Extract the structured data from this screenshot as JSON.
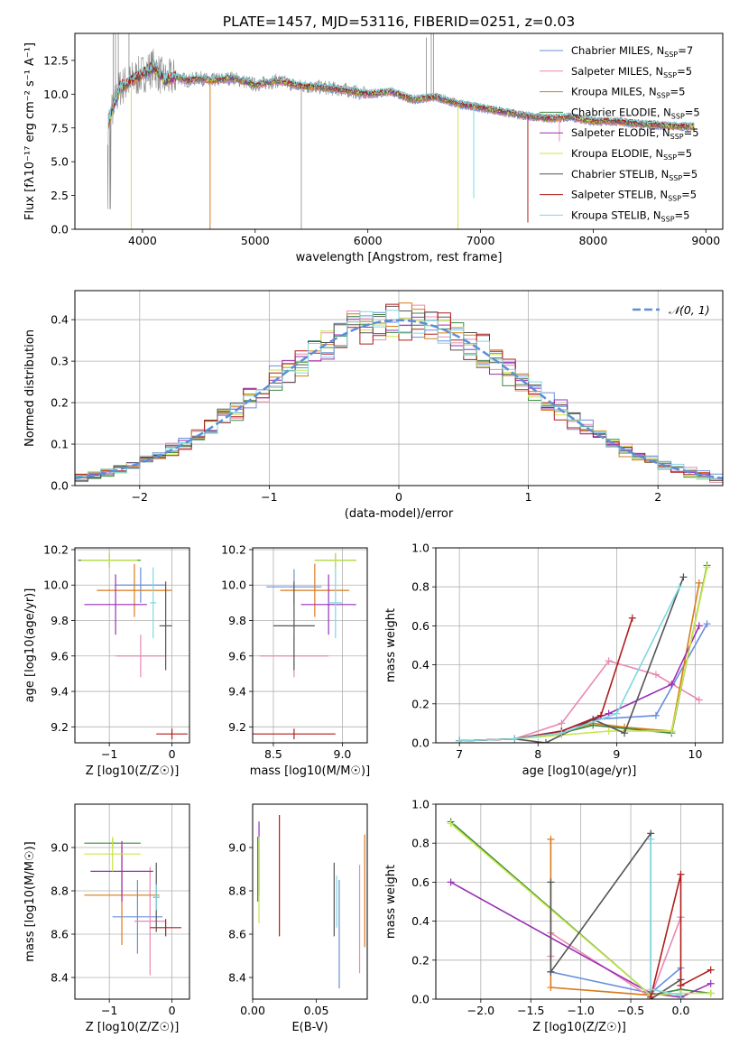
{
  "figure_title": "PLATE=1457, MJD=53116, FIBERID=0251, z=0.03",
  "colors": [
    "#6a8fdc",
    "#e88ab4",
    "#d97a1c",
    "#3d8a3d",
    "#9a2fb5",
    "#c8e64a",
    "#555555",
    "#b01c1c",
    "#7ed8e0"
  ],
  "chart_data": [
    {
      "id": "spectrum",
      "type": "line",
      "xlabel": "wavelength [Angstrom, rest frame]",
      "ylabel": "Flux [fλ10⁻¹⁷ erg cm⁻² s⁻¹ A⁻¹]",
      "xlim": [
        3400,
        9150
      ],
      "ylim": [
        0,
        14.5
      ],
      "xticks": [
        4000,
        5000,
        6000,
        7000,
        8000,
        9000
      ],
      "yticks": [
        0.0,
        2.5,
        5.0,
        7.5,
        10.0,
        12.5
      ],
      "legend_position": "top-right",
      "legend": [
        "Chabrier MILES, N_SSP=7",
        "Salpeter MILES, N_SSP=5",
        "Kroupa MILES, N_SSP=5",
        "Chabrier ELODIE, N_SSP=5",
        "Salpeter ELODIE, N_SSP=5",
        "Kroupa ELODIE, N_SSP=5",
        "Chabrier STELIB, N_SSP=5",
        "Salpeter STELIB, N_SSP=5",
        "Kroupa STELIB, N_SSP=5"
      ],
      "data_series": {
        "x": [
          3700,
          3800,
          3900,
          4000,
          4100,
          4200,
          4300,
          4400,
          4500,
          4600,
          4800,
          5000,
          5200,
          5400,
          5600,
          5800,
          6000,
          6200,
          6400,
          6600,
          6800,
          7000,
          7200,
          7400,
          7600,
          7800,
          8000,
          8200,
          8400,
          8600,
          8800
        ],
        "y": [
          8.0,
          10.5,
          11.0,
          11.5,
          12.0,
          11.0,
          11.3,
          11.0,
          11.2,
          11.0,
          11.2,
          10.7,
          11.0,
          10.6,
          10.5,
          10.3,
          10.0,
          10.2,
          9.6,
          9.8,
          9.3,
          9.0,
          8.7,
          8.4,
          8.2,
          8.3,
          8.0,
          8.0,
          7.8,
          7.7,
          7.6
        ]
      },
      "grid": false
    },
    {
      "id": "residuals",
      "type": "line",
      "xlabel": "(data-model)/error",
      "ylabel": "Normed distribution",
      "xlim": [
        -2.5,
        2.5
      ],
      "ylim": [
        0,
        0.47
      ],
      "xticks": [
        -2,
        -1,
        0,
        1,
        2
      ],
      "yticks": [
        0.0,
        0.1,
        0.2,
        0.3,
        0.4
      ],
      "legend": [
        "N(0,1)"
      ],
      "legend_position": "top-right",
      "curve": "normal_pdf",
      "grid": true
    },
    {
      "id": "age_vs_Z",
      "type": "scatter",
      "xlabel": "Z [log10(Z/Z☉)]",
      "ylabel": "age  [log10(age/yr)]",
      "xlim": [
        -1.55,
        0.28
      ],
      "ylim": [
        9.11,
        10.21
      ],
      "xticks": [
        -1,
        0
      ],
      "yticks": [
        9.2,
        9.4,
        9.6,
        9.8,
        10.0,
        10.2
      ],
      "grid": true,
      "points": [
        {
          "x": -0.5,
          "y": 10.0,
          "xerr": 0.4,
          "yerr": 0.1
        },
        {
          "x": -0.5,
          "y": 9.6,
          "xerr": 0.4,
          "yerr": 0.12
        },
        {
          "x": -0.6,
          "y": 9.97,
          "xerr": 0.6,
          "yerr": 0.15
        },
        {
          "x": -1.0,
          "y": 10.14,
          "xerr": 0.5,
          "yerr": 0.04
        },
        {
          "x": -0.9,
          "y": 9.89,
          "xerr": 0.5,
          "yerr": 0.17
        },
        {
          "x": -1.0,
          "y": 10.14,
          "xerr": 0.45,
          "yerr": 0.04
        },
        {
          "x": -0.1,
          "y": 9.77,
          "xerr": 0.1,
          "yerr": 0.25
        },
        {
          "x": 0.0,
          "y": 9.16,
          "xerr": 0.25,
          "yerr": 0.03
        },
        {
          "x": -0.3,
          "y": 9.9,
          "xerr": 0.05,
          "yerr": 0.2
        }
      ]
    },
    {
      "id": "age_vs_mass",
      "type": "scatter",
      "xlabel": "mass [log10(M/M☉)]",
      "ylabel": "",
      "xlim": [
        8.35,
        9.18
      ],
      "ylim": [
        9.11,
        10.21
      ],
      "xticks": [
        8.5,
        9.0
      ],
      "yticks": [
        9.2,
        9.4,
        9.6,
        9.8,
        10.0,
        10.2
      ],
      "grid": true,
      "points": [
        {
          "x": 8.65,
          "y": 9.99,
          "xerr": 0.2,
          "yerr": 0.1
        },
        {
          "x": 8.65,
          "y": 9.6,
          "xerr": 0.25,
          "yerr": 0.12
        },
        {
          "x": 8.8,
          "y": 9.97,
          "xerr": 0.25,
          "yerr": 0.15
        },
        {
          "x": 8.95,
          "y": 10.14,
          "xerr": 0.15,
          "yerr": 0.04
        },
        {
          "x": 8.9,
          "y": 9.89,
          "xerr": 0.2,
          "yerr": 0.17
        },
        {
          "x": 8.95,
          "y": 10.14,
          "xerr": 0.15,
          "yerr": 0.04
        },
        {
          "x": 8.65,
          "y": 9.77,
          "xerr": 0.15,
          "yerr": 0.25
        },
        {
          "x": 8.65,
          "y": 9.16,
          "xerr": 0.3,
          "yerr": 0.03
        },
        {
          "x": 8.95,
          "y": 9.9,
          "xerr": 0.05,
          "yerr": 0.2
        }
      ]
    },
    {
      "id": "massweight_vs_age",
      "type": "line",
      "xlabel": "age  [log10(age/yr)]",
      "ylabel": "mass weight",
      "xlim": [
        6.7,
        10.35
      ],
      "ylim": [
        0,
        1.0
      ],
      "xticks": [
        7,
        8,
        9,
        10
      ],
      "yticks": [
        0.0,
        0.2,
        0.4,
        0.6,
        0.8,
        1.0
      ],
      "grid": true,
      "series": [
        {
          "x": [
            7.0,
            7.7,
            8.3,
            8.7,
            9.5,
            10.15
          ],
          "y": [
            0.01,
            0.02,
            0.06,
            0.12,
            0.14,
            0.61
          ]
        },
        {
          "x": [
            7.0,
            7.7,
            8.3,
            8.9,
            9.5,
            10.05
          ],
          "y": [
            0.01,
            0.02,
            0.1,
            0.42,
            0.35,
            0.22
          ]
        },
        {
          "x": [
            7.0,
            7.7,
            8.3,
            8.7,
            9.1,
            9.7,
            10.05
          ],
          "y": [
            0.01,
            0.02,
            0.05,
            0.1,
            0.08,
            0.06,
            0.82
          ]
        },
        {
          "x": [
            7.0,
            7.7,
            8.3,
            8.7,
            9.7,
            10.15
          ],
          "y": [
            0.01,
            0.02,
            0.05,
            0.09,
            0.05,
            0.91
          ]
        },
        {
          "x": [
            7.0,
            7.7,
            8.3,
            8.9,
            9.7,
            10.05
          ],
          "y": [
            0.01,
            0.02,
            0.06,
            0.15,
            0.3,
            0.6
          ]
        },
        {
          "x": [
            7.0,
            7.7,
            8.3,
            8.9,
            9.7,
            10.15
          ],
          "y": [
            0.01,
            0.02,
            0.04,
            0.06,
            0.06,
            0.9
          ]
        },
        {
          "x": [
            7.0,
            7.7,
            8.1,
            8.7,
            9.1,
            9.85
          ],
          "y": [
            0.01,
            0.02,
            0.0,
            0.12,
            0.05,
            0.85
          ]
        },
        {
          "x": [
            7.0,
            7.7,
            8.3,
            8.8,
            9.2
          ],
          "y": [
            0.01,
            0.02,
            0.06,
            0.14,
            0.64
          ]
        },
        {
          "x": [
            7.0,
            7.7,
            8.3,
            9.0,
            9.8
          ],
          "y": [
            0.01,
            0.02,
            0.05,
            0.15,
            0.8
          ]
        }
      ]
    },
    {
      "id": "mass_vs_Z",
      "type": "scatter",
      "xlabel": "Z [log10(Z/Z☉)]",
      "ylabel": "mass [log10(M/M☉)]",
      "xlim": [
        -1.55,
        0.28
      ],
      "ylim": [
        8.3,
        9.2
      ],
      "xticks": [
        -1,
        0
      ],
      "yticks": [
        8.4,
        8.6,
        8.8,
        9.0
      ],
      "grid": true,
      "points": [
        {
          "x": -0.55,
          "y": 8.68,
          "xerr": 0.4,
          "yerr": 0.17
        },
        {
          "x": -0.35,
          "y": 8.66,
          "xerr": 0.25,
          "yerr": 0.25
        },
        {
          "x": -0.8,
          "y": 8.78,
          "xerr": 0.6,
          "yerr": 0.23
        },
        {
          "x": -0.95,
          "y": 9.02,
          "xerr": 0.45,
          "yerr": 0.02
        },
        {
          "x": -0.8,
          "y": 8.89,
          "xerr": 0.5,
          "yerr": 0.14
        },
        {
          "x": -0.95,
          "y": 8.97,
          "xerr": 0.45,
          "yerr": 0.08
        },
        {
          "x": -0.25,
          "y": 8.77,
          "xerr": 0.05,
          "yerr": 0.16
        },
        {
          "x": -0.1,
          "y": 8.63,
          "xerr": 0.25,
          "yerr": 0.04
        },
        {
          "x": -0.25,
          "y": 8.77,
          "xerr": 0.05,
          "yerr": 0.06
        }
      ]
    },
    {
      "id": "mass_vs_EBV",
      "type": "scatter",
      "xlabel": "E(B-V)",
      "ylabel": "",
      "xlim": [
        0.0,
        0.09
      ],
      "ylim": [
        8.3,
        9.2
      ],
      "xticks": [
        0.0,
        0.05
      ],
      "yticks": [
        8.4,
        8.6,
        8.8,
        9.0
      ],
      "grid": false,
      "points": [
        {
          "x": 0.068,
          "y": 8.6,
          "yerr": 0.25
        },
        {
          "x": 0.084,
          "y": 8.67,
          "yerr": 0.25
        },
        {
          "x": 0.088,
          "y": 8.8,
          "yerr": 0.26
        },
        {
          "x": 0.004,
          "y": 8.9,
          "yerr": 0.15
        },
        {
          "x": 0.005,
          "y": 8.95,
          "yerr": 0.17
        },
        {
          "x": 0.005,
          "y": 8.85,
          "yerr": 0.2
        },
        {
          "x": 0.064,
          "y": 8.76,
          "yerr": 0.17
        },
        {
          "x": 0.021,
          "y": 8.87,
          "yerr": 0.28
        },
        {
          "x": 0.066,
          "y": 8.75,
          "yerr": 0.12
        }
      ]
    },
    {
      "id": "massweight_vs_Z",
      "type": "line",
      "xlabel": "Z [log10(Z/Z☉)]",
      "ylabel": "mass weight",
      "xlim": [
        -2.45,
        0.42
      ],
      "ylim": [
        0,
        1.0
      ],
      "xticks": [
        -2.0,
        -1.5,
        -1.0,
        -0.5,
        0.0
      ],
      "yticks": [
        0.0,
        0.2,
        0.4,
        0.6,
        0.8,
        1.0
      ],
      "grid": true,
      "series": [
        {
          "x": [
            -1.3,
            -0.3,
            0.0,
            0.0
          ],
          "y": [
            0.14,
            0.03,
            0.16,
            0.01
          ]
        },
        {
          "x": [
            -1.3,
            -1.3,
            -0.3,
            0.0
          ],
          "y": [
            0.22,
            0.34,
            0.01,
            0.42
          ]
        },
        {
          "x": [
            -1.3,
            -1.3,
            -0.3,
            -0.3
          ],
          "y": [
            0.82,
            0.06,
            0.02,
            0.04
          ]
        },
        {
          "x": [
            -2.3,
            -0.3,
            0.0,
            0.3
          ],
          "y": [
            0.91,
            0.02,
            0.05,
            0.03
          ]
        },
        {
          "x": [
            -2.3,
            -0.3,
            0.0,
            0.3
          ],
          "y": [
            0.6,
            0.03,
            0.01,
            0.08
          ]
        },
        {
          "x": [
            -2.3,
            -0.3,
            0.0,
            0.3
          ],
          "y": [
            0.9,
            0.02,
            0.03,
            0.03
          ]
        },
        {
          "x": [
            -1.3,
            -1.3,
            -0.3,
            -0.3,
            0.0
          ],
          "y": [
            0.6,
            0.14,
            0.85,
            0.0,
            0.1
          ]
        },
        {
          "x": [
            -0.3,
            0.0,
            0.0,
            0.3
          ],
          "y": [
            0.01,
            0.64,
            0.07,
            0.15
          ]
        },
        {
          "x": [
            -0.3,
            -0.3,
            0.0
          ],
          "y": [
            0.82,
            0.05,
            0.02
          ]
        }
      ]
    }
  ]
}
